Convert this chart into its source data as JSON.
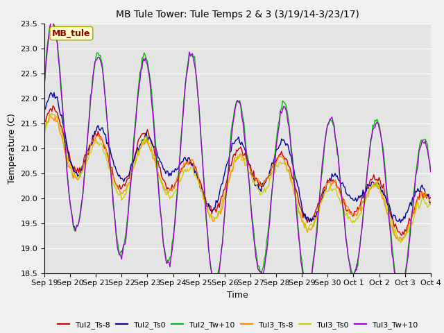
{
  "title": "MB Tule Tower: Tule Temps 2 & 3 (3/19/14-3/23/17)",
  "xlabel": "Time",
  "ylabel": "Temperature (C)",
  "ylim": [
    18.5,
    23.5
  ],
  "background_color": "#ebebeb",
  "plot_bg_color": "#e4e4e4",
  "annotation_text": "MB_tule",
  "annotation_color": "#8b0000",
  "annotation_bg": "#ffffcc",
  "series": {
    "Tul2_Ts-8": {
      "color": "#cc0000",
      "lw": 1.0
    },
    "Tul2_Ts0": {
      "color": "#000099",
      "lw": 1.0
    },
    "Tul2_Tw+10": {
      "color": "#00bb00",
      "lw": 1.0
    },
    "Tul3_Ts-8": {
      "color": "#ff8800",
      "lw": 1.0
    },
    "Tul3_Ts0": {
      "color": "#cccc00",
      "lw": 1.0
    },
    "Tul3_Tw+10": {
      "color": "#9900cc",
      "lw": 1.0
    }
  },
  "xtick_labels": [
    "Sep 19",
    "Sep 20",
    "Sep 21",
    "Sep 22",
    "Sep 23",
    "Sep 24",
    "Sep 25",
    "Sep 26",
    "Sep 27",
    "Sep 28",
    "Sep 29",
    "Sep 30",
    "Oct 1",
    "Oct 2",
    "Oct 3",
    "Oct 4"
  ],
  "title_fontsize": 10,
  "axis_fontsize": 9,
  "tick_fontsize": 8,
  "legend_fontsize": 8
}
